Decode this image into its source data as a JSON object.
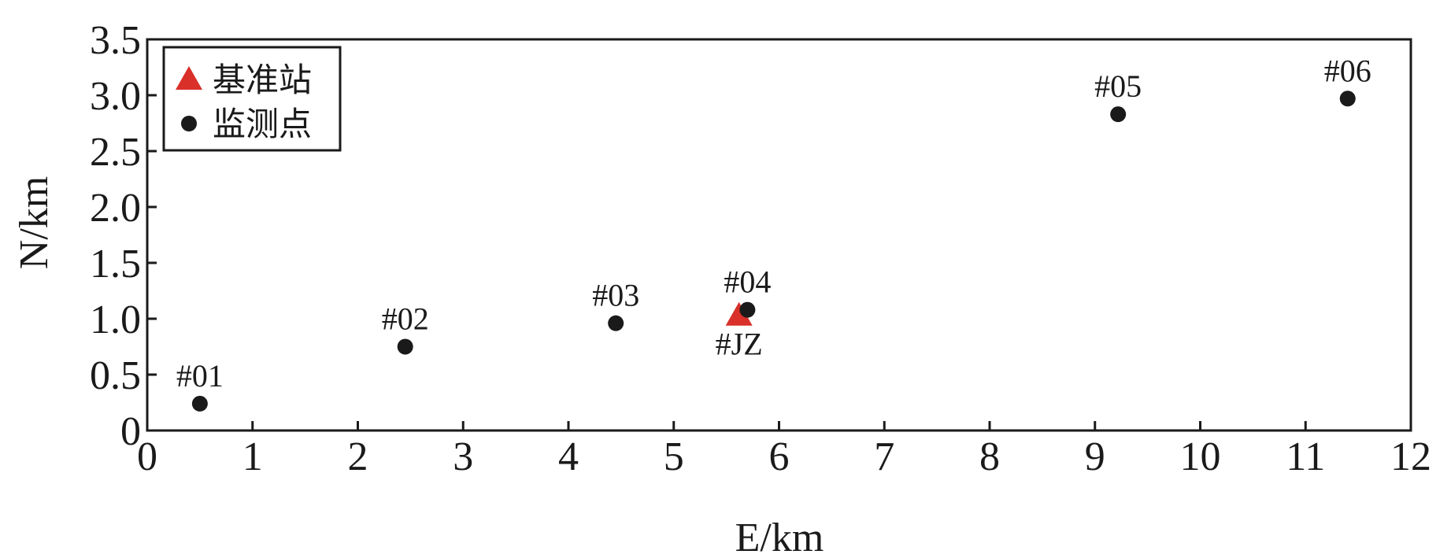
{
  "chart_data": {
    "type": "scatter",
    "x_label": "E/km",
    "y_label": "N/km",
    "xlim": [
      0,
      12
    ],
    "xticks": [
      0,
      1,
      2,
      3,
      4,
      5,
      6,
      7,
      8,
      9,
      10,
      11,
      12
    ],
    "ylim": [
      0,
      3.5
    ],
    "yticks": [
      0,
      0.5,
      {
        "value": 1,
        "label": "1.0"
      },
      1.5,
      {
        "value": 2,
        "label": "2.0"
      },
      2.5,
      {
        "value": 3,
        "label": "3.0"
      },
      3.5
    ],
    "legend": "upper-left",
    "series": [
      {
        "name": "基准站",
        "color": "#d9302a",
        "marker": "triangle",
        "label_position": "below",
        "x": [
          5.62
        ],
        "values": [
          1.03
        ],
        "point_labels": [
          "#JZ"
        ]
      },
      {
        "name": "监测点",
        "color": "#1a1a1a",
        "marker": "circle",
        "label_position": "above",
        "x": [
          0.5,
          2.45,
          4.45,
          5.7,
          9.22,
          11.4
        ],
        "values": [
          0.24,
          0.75,
          0.96,
          1.08,
          2.83,
          2.97
        ],
        "point_labels": [
          "#01",
          "#02",
          "#03",
          "#04",
          "#05",
          "#06"
        ]
      }
    ]
  }
}
